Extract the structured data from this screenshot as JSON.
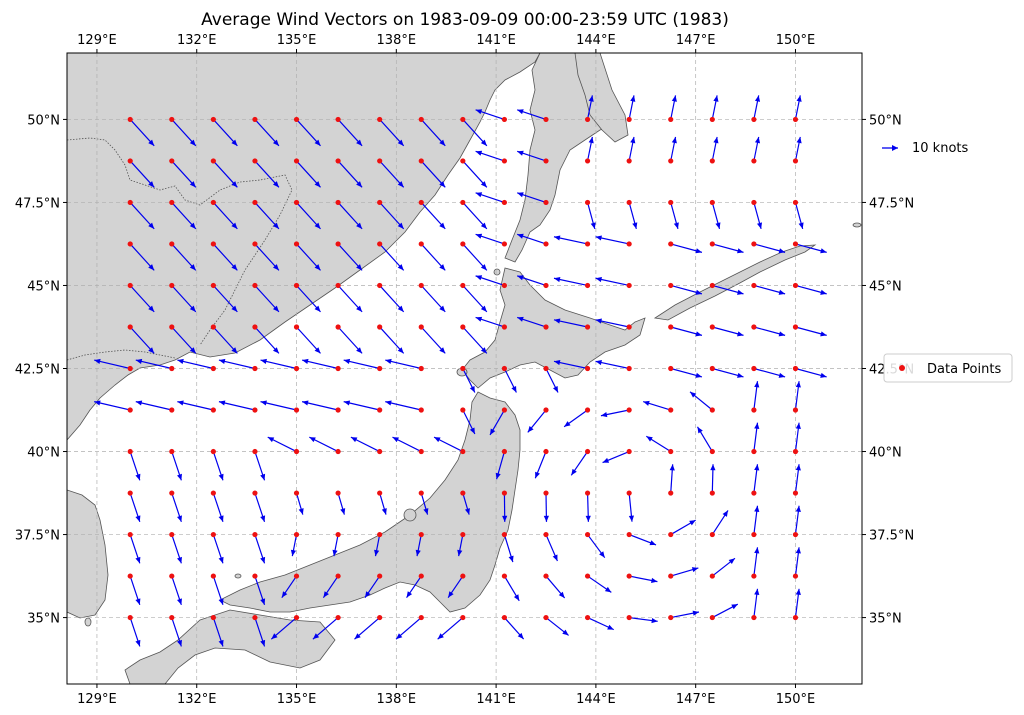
{
  "title": "Average Wind Vectors on 1983-09-09 00:00-23:59 UTC (1983)",
  "colors": {
    "land": "#d3d3d3",
    "ocean": "#ffffff",
    "coast": "#555555",
    "arrow": "#0000ee",
    "point": "#ee1111",
    "grid": "#b0b0b0"
  },
  "extent": {
    "lon": [
      128.1,
      152.0
    ],
    "lat": [
      33.0,
      52.0
    ]
  },
  "x_ticks": [
    {
      "value": 129,
      "label": "129°E"
    },
    {
      "value": 132,
      "label": "132°E"
    },
    {
      "value": 135,
      "label": "135°E"
    },
    {
      "value": 138,
      "label": "138°E"
    },
    {
      "value": 141,
      "label": "141°E"
    },
    {
      "value": 144,
      "label": "144°E"
    },
    {
      "value": 147,
      "label": "147°E"
    },
    {
      "value": 150,
      "label": "150°E"
    }
  ],
  "y_ticks": [
    {
      "value": 50,
      "label": "50°N"
    },
    {
      "value": 47.5,
      "label": "47.5°N"
    },
    {
      "value": 45,
      "label": "45°N"
    },
    {
      "value": 42.5,
      "label": "42.5°N"
    },
    {
      "value": 40,
      "label": "40°N"
    },
    {
      "value": 37.5,
      "label": "37.5°N"
    },
    {
      "value": 35,
      "label": "35°N"
    }
  ],
  "legend": {
    "quiver_label": "10 knots",
    "points_label": "Data Points"
  },
  "grid": {
    "lon_start": 130,
    "lon_end": 150,
    "lon_step": 1.25,
    "lat_start": 35,
    "lat_end": 50,
    "lat_step": 1.25
  }
}
